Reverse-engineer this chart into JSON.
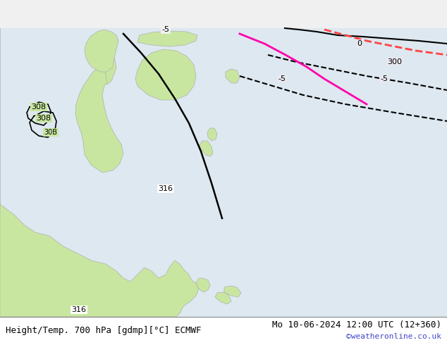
{
  "title_left": "Height/Temp. 700 hPa [gdmp][°C] ECMWF",
  "title_right": "Mo 10-06-2024 12:00 UTC (12+360)",
  "watermark": "©weatheronline.co.uk",
  "background_color": "#f0f0f0",
  "land_color_green": "#c8e6a0",
  "land_color_dark": "#a8d080",
  "ocean_color": "#e8e8f0",
  "border_color": "#b0b0b0",
  "contour_black": "#000000",
  "contour_pink": "#ff00aa",
  "contour_red": "#ff4444",
  "contour_dashed_black": "#000000",
  "bottom_bar_color": "#ffffff",
  "title_fontsize": 9,
  "watermark_color": "#4444cc"
}
